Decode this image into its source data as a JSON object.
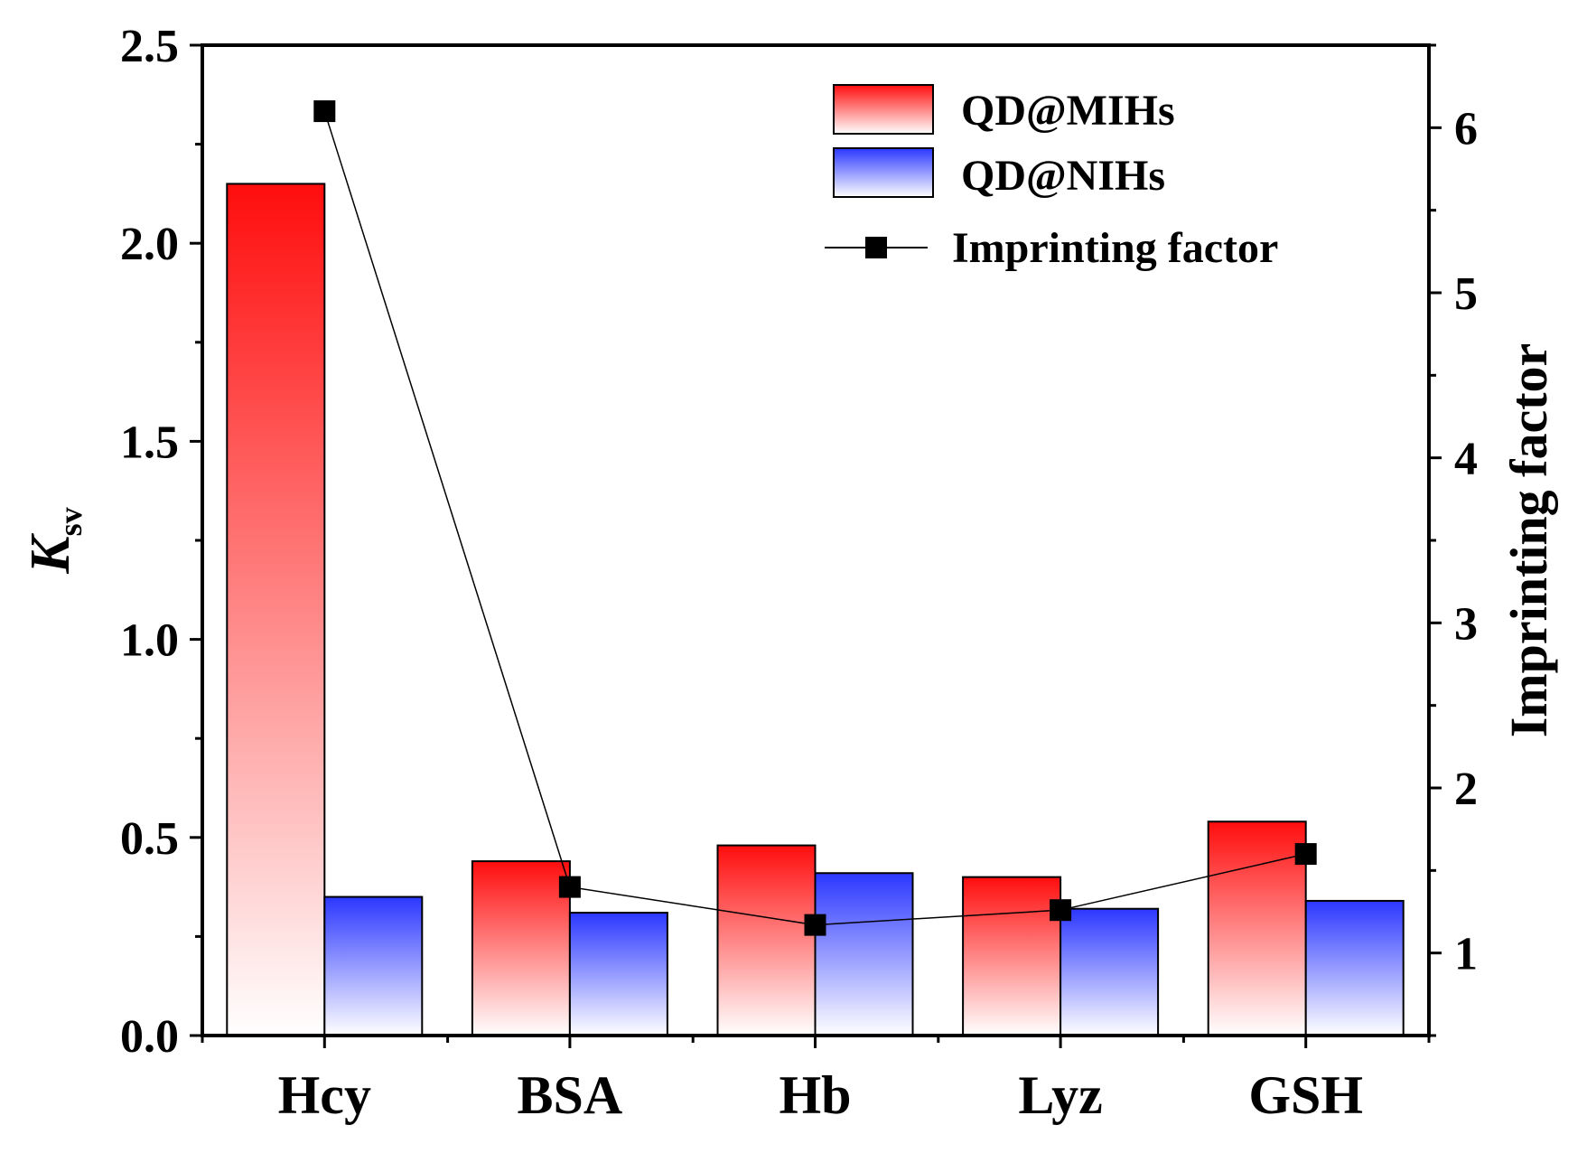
{
  "chart_data": {
    "type": "bar",
    "categories": [
      "Hcy",
      "BSA",
      "Hb",
      "Lyz",
      "GSH"
    ],
    "series": [
      {
        "name": "QD@MIHs",
        "axis": "left",
        "kind": "bar",
        "color_top": "#ff0d0d",
        "color_bottom": "#ffffff",
        "values": [
          2.15,
          0.44,
          0.48,
          0.4,
          0.54
        ]
      },
      {
        "name": "QD@NIHs",
        "axis": "left",
        "kind": "bar",
        "color_top": "#2b37ff",
        "color_bottom": "#ffffff",
        "values": [
          0.35,
          0.31,
          0.41,
          0.32,
          0.34
        ]
      },
      {
        "name": "Imprinting factor",
        "axis": "right",
        "kind": "line",
        "marker": "square",
        "color": "#000000",
        "values": [
          6.1,
          1.4,
          1.17,
          1.26,
          1.6
        ]
      }
    ],
    "ylabel": "K",
    "ylabel_sub": "sv",
    "y2label": "Imprinting factor",
    "ylim": [
      0,
      2.5
    ],
    "y2lim": [
      0.5,
      6.5
    ],
    "yticks": [
      "0.0",
      "0.5",
      "1.0",
      "1.5",
      "2.0",
      "2.5"
    ],
    "y2ticks": [
      "1",
      "2",
      "3",
      "4",
      "5",
      "6"
    ],
    "legend": {
      "placement": "top-right",
      "entries": [
        "QD@MIHs",
        "QD@NIHs",
        "Imprinting factor"
      ]
    }
  }
}
